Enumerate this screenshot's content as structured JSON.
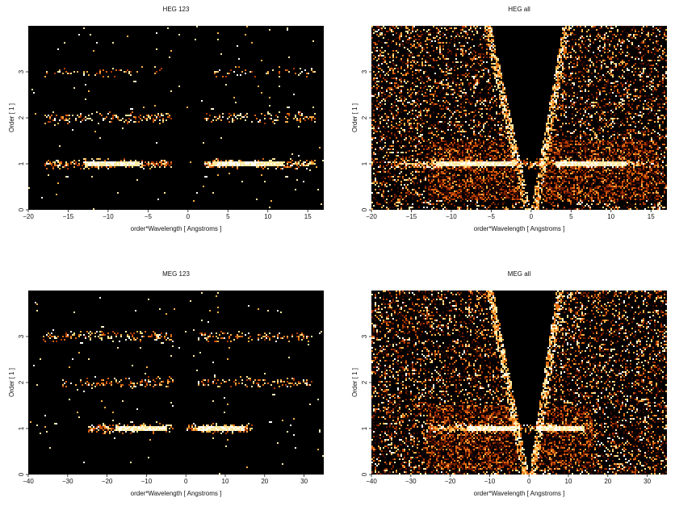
{
  "chart_data": [
    {
      "type": "heatmap",
      "title": "HEG 123",
      "xlabel": "order*Wavelength [ Angstroms ]",
      "ylabel": "Order [ 1 ]",
      "xlim": [
        -20,
        17
      ],
      "ylim": [
        0,
        4
      ],
      "xticks": [
        -20,
        -15,
        -10,
        -5,
        0,
        5,
        10,
        15
      ],
      "yticks": [
        0,
        1,
        2,
        3
      ],
      "bands": [
        {
          "order": 1,
          "x_ranges": [
            [
              -18,
              -2
            ],
            [
              2,
              16
            ]
          ],
          "peak_ranges": [
            [
              -13,
              -6
            ],
            [
              3,
              12
            ]
          ],
          "intensity": "high"
        },
        {
          "order": 2,
          "x_ranges": [
            [
              -18,
              -2
            ],
            [
              2,
              16
            ]
          ],
          "intensity": "medium"
        },
        {
          "order": 3,
          "x_ranges": [
            [
              -18,
              -3
            ],
            [
              3,
              16
            ]
          ],
          "intensity": "low"
        }
      ],
      "gap": [
        -2,
        2
      ]
    },
    {
      "type": "heatmap",
      "title": "HEG all",
      "xlabel": "order*Wavelength [ Angstroms ]",
      "ylabel": "Order [ 1 ]",
      "xlim": [
        -20,
        17
      ],
      "ylim": [
        0,
        4
      ],
      "xticks": [
        -20,
        -15,
        -10,
        -5,
        0,
        5,
        10,
        15
      ],
      "yticks": [
        0,
        1,
        2,
        3
      ],
      "background": "dense",
      "bands": [
        {
          "order": 1,
          "x_ranges": [
            [
              -18,
              16
            ]
          ],
          "peak_ranges": [
            [
              -12,
              -2
            ],
            [
              3,
              12
            ]
          ],
          "intensity": "high"
        }
      ],
      "blocks": [
        {
          "x": [
            -13,
            16
          ],
          "y": [
            0.2,
            1.5
          ]
        }
      ],
      "wedge": {
        "apex_x": 0,
        "left_x_at_top": -5,
        "right_x_at_top": 4
      }
    },
    {
      "type": "heatmap",
      "title": "MEG 123",
      "xlabel": "order*Wavelength [ Angstroms ]",
      "ylabel": "Order [ 1 ]",
      "xlim": [
        -40,
        35
      ],
      "ylim": [
        0,
        4
      ],
      "xticks": [
        -40,
        -30,
        -20,
        -10,
        0,
        10,
        20,
        30
      ],
      "yticks": [
        0,
        1,
        2,
        3
      ],
      "bands": [
        {
          "order": 1,
          "x_ranges": [
            [
              -25,
              -3
            ],
            [
              0,
              17
            ]
          ],
          "peak_ranges": [
            [
              -18,
              -5
            ],
            [
              3,
              15
            ]
          ],
          "intensity": "high"
        },
        {
          "order": 2,
          "x_ranges": [
            [
              -32,
              -3
            ],
            [
              3,
              32
            ]
          ],
          "intensity": "medium"
        },
        {
          "order": 3,
          "x_ranges": [
            [
              -37,
              -3
            ],
            [
              3,
              32
            ]
          ],
          "intensity": "medium"
        }
      ],
      "gap": [
        -3,
        0
      ]
    },
    {
      "type": "heatmap",
      "title": "MEG all",
      "xlabel": "order*Wavelength [ Angstroms ]",
      "ylabel": "Order [ 1 ]",
      "xlim": [
        -40,
        35
      ],
      "ylim": [
        0,
        4
      ],
      "xticks": [
        -40,
        -30,
        -20,
        -10,
        0,
        10,
        20,
        30
      ],
      "yticks": [
        0,
        1,
        2,
        3
      ],
      "background": "dense",
      "bands": [
        {
          "order": 1,
          "x_ranges": [
            [
              -26,
              16
            ]
          ],
          "peak_ranges": [
            [
              -16,
              -3
            ],
            [
              2,
              14
            ]
          ],
          "intensity": "high"
        }
      ],
      "blocks": [
        {
          "x": [
            -26,
            16
          ],
          "y": [
            0.1,
            1.5
          ]
        }
      ],
      "wedge": {
        "apex_x": 0,
        "left_x_at_top": -9,
        "right_x_at_top": 7
      }
    }
  ],
  "colormap": [
    "#000000",
    "#3a0a00",
    "#7a1e00",
    "#b23a00",
    "#e06a10",
    "#ffb347",
    "#ffe9a0",
    "#ffffff"
  ]
}
